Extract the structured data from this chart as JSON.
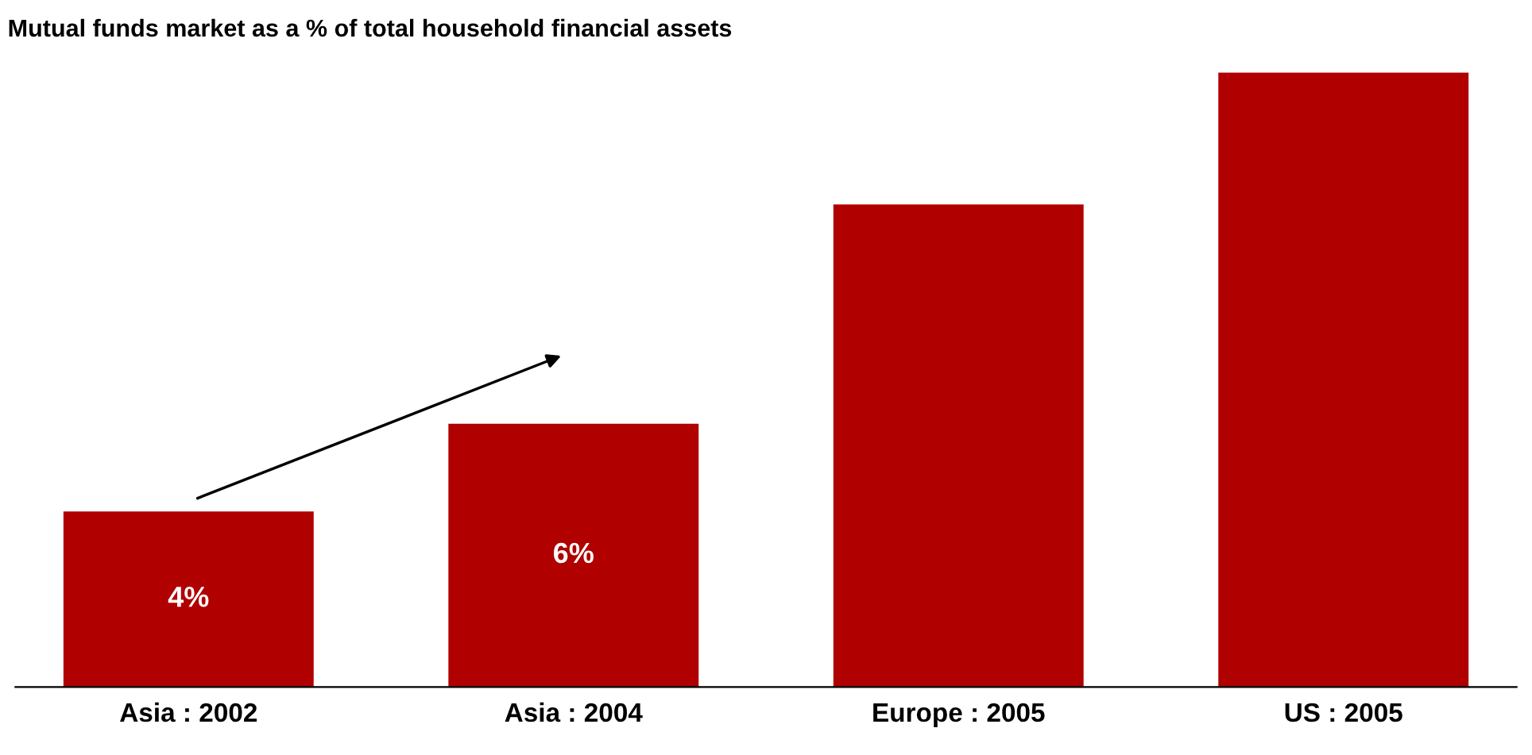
{
  "chart_data": {
    "type": "bar",
    "title": "Mutual funds market as a % of total household financial assets",
    "categories": [
      "Asia : 2002",
      "Asia : 2004",
      "Europe : 2005",
      "US : 2005"
    ],
    "values": [
      4,
      6,
      11,
      14
    ],
    "value_labels": [
      "4%",
      "6%",
      null,
      null
    ],
    "colors": [
      "#b00000",
      "#b00000",
      "#b00000",
      "#b00000"
    ],
    "grid": false,
    "legend": false
  }
}
